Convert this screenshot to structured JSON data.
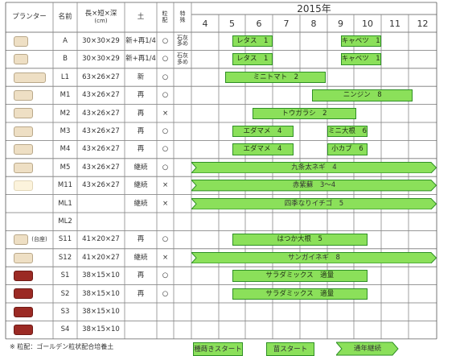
{
  "year": "2015年",
  "headers": {
    "planter": "プランター",
    "name": "名前",
    "size": "長×短×深",
    "size_unit": "(cm)",
    "soil": "土",
    "fertilizer": "粒配",
    "special": "特殊"
  },
  "months": [
    "4",
    "5",
    "6",
    "7",
    "8",
    "9",
    "10",
    "11",
    "12"
  ],
  "rows": [
    {
      "name": "A",
      "size": "30×30×29",
      "soil": "新+再1/4",
      "fert": "○",
      "special": "石灰多め",
      "color": "#eedfc4",
      "border": "#b9a88a",
      "box_w": "sq"
    },
    {
      "name": "B",
      "size": "30×30×29",
      "soil": "新+再1/4",
      "fert": "○",
      "special": "石灰多め",
      "color": "#eedfc4",
      "border": "#b9a88a",
      "box_w": "sq"
    },
    {
      "name": "L1",
      "size": "63×26×27",
      "soil": "新",
      "fert": "○",
      "special": "",
      "color": "#eedfc4",
      "border": "#b9a88a",
      "box_w": "long"
    },
    {
      "name": "M1",
      "size": "43×26×27",
      "soil": "再",
      "fert": "○",
      "special": "",
      "color": "#eedfc4",
      "border": "#b9a88a",
      "box_w": "mid"
    },
    {
      "name": "M2",
      "size": "43×26×27",
      "soil": "再",
      "fert": "×",
      "special": "",
      "color": "#eedfc4",
      "border": "#b9a88a",
      "box_w": "mid"
    },
    {
      "name": "M3",
      "size": "43×26×27",
      "soil": "再",
      "fert": "○",
      "special": "",
      "color": "#eedfc4",
      "border": "#b9a88a",
      "box_w": "mid"
    },
    {
      "name": "M4",
      "size": "43×26×27",
      "soil": "再",
      "fert": "○",
      "special": "",
      "color": "#eedfc4",
      "border": "#b9a88a",
      "box_w": "mid"
    },
    {
      "name": "M5",
      "size": "43×26×27",
      "soil": "継続",
      "fert": "○",
      "special": "",
      "color": "#eedfc4",
      "border": "#b9a88a",
      "box_w": "mid"
    },
    {
      "name": "M11",
      "size": "43×26×27",
      "soil": "継続",
      "fert": "×",
      "special": "",
      "color": "#fcf3dc",
      "border": "#e2d6b8",
      "box_w": "mid"
    },
    {
      "name": "ML1",
      "size": "",
      "soil": "継続",
      "fert": "×",
      "special": "",
      "color": "",
      "border": "",
      "box_w": ""
    },
    {
      "name": "ML2",
      "size": "",
      "soil": "",
      "fert": "",
      "special": "",
      "color": "",
      "border": "",
      "box_w": ""
    },
    {
      "name": "S11",
      "size": "41×20×27",
      "soil": "再",
      "fert": "○",
      "special": "",
      "color": "#eedfc4",
      "border": "#b9a88a",
      "box_w": "small",
      "prefix": "(台座)"
    },
    {
      "name": "S12",
      "size": "41×20×27",
      "soil": "継続",
      "fert": "×",
      "special": "",
      "color": "#eedfc4",
      "border": "#b9a88a",
      "box_w": "mid"
    },
    {
      "name": "S1",
      "size": "38×15×10",
      "soil": "再",
      "fert": "○",
      "special": "",
      "color": "#9b2a24",
      "border": "#6e1a16",
      "box_w": "mid"
    },
    {
      "name": "S2",
      "size": "38×15×10",
      "soil": "再",
      "fert": "○",
      "special": "",
      "color": "#9b2a24",
      "border": "#6e1a16",
      "box_w": "mid"
    },
    {
      "name": "S3",
      "size": "38×15×10",
      "soil": "",
      "fert": "",
      "special": "",
      "color": "#9b2a24",
      "border": "#6e1a16",
      "box_w": "mid"
    },
    {
      "name": "S4",
      "size": "38×15×10",
      "soil": "",
      "fert": "",
      "special": "",
      "color": "#9b2a24",
      "border": "#6e1a16",
      "box_w": "mid"
    }
  ],
  "bars": [
    {
      "row": 0,
      "label": "レタス　1",
      "start": 5.0,
      "end": 6.5,
      "type": "seed"
    },
    {
      "row": 0,
      "label": "キャベツ　1",
      "start": 9.0,
      "end": 10.5,
      "type": "seed"
    },
    {
      "row": 1,
      "label": "レタス　1",
      "start": 5.0,
      "end": 6.5,
      "type": "seed"
    },
    {
      "row": 1,
      "label": "キャベツ　1",
      "start": 9.0,
      "end": 10.5,
      "type": "seed"
    },
    {
      "row": 2,
      "label": "ミニトマト　2",
      "start": 4.75,
      "end": 8.45,
      "type": "seed"
    },
    {
      "row": 3,
      "label": "ニンジン　8",
      "start": 7.95,
      "end": 11.65,
      "type": "seed"
    },
    {
      "row": 4,
      "label": "トウガラシ　2",
      "start": 5.75,
      "end": 9.6,
      "type": "seed"
    },
    {
      "row": 5,
      "label": "エダマメ　4",
      "start": 5.0,
      "end": 7.25,
      "type": "seed"
    },
    {
      "row": 5,
      "label": "ミニ大根　6",
      "start": 8.5,
      "end": 10.0,
      "type": "seed"
    },
    {
      "row": 6,
      "label": "エダマメ　4",
      "start": 5.0,
      "end": 7.25,
      "type": "seed"
    },
    {
      "row": 6,
      "label": "小カブ　6",
      "start": 8.5,
      "end": 10.0,
      "type": "seed"
    },
    {
      "row": 7,
      "label": "九条太ネギ　4",
      "start": 3.5,
      "end": 12.5,
      "type": "continue"
    },
    {
      "row": 8,
      "label": "赤紫蘇　3～4",
      "start": 3.5,
      "end": 12.5,
      "type": "continue"
    },
    {
      "row": 9,
      "label": "四季なりイチゴ　5",
      "start": 3.5,
      "end": 12.5,
      "type": "continue"
    },
    {
      "row": 11,
      "label": "はつか大根　5",
      "start": 5.0,
      "end": 10.0,
      "type": "seed"
    },
    {
      "row": 12,
      "label": "サンガイネギ　8",
      "start": 3.5,
      "end": 12.5,
      "type": "continue"
    },
    {
      "row": 13,
      "label": "サラダミックス　適量",
      "start": 5.0,
      "end": 10.0,
      "type": "seed"
    },
    {
      "row": 14,
      "label": "サラダミックス　適量",
      "start": 5.0,
      "end": 10.0,
      "type": "seed"
    }
  ],
  "legend": {
    "seed": "種蒔きスタート",
    "seedling": "苗スタート",
    "continue": "通年継続"
  },
  "footnote": "※ 粒配：ゴールデン粒状配合培養土"
}
